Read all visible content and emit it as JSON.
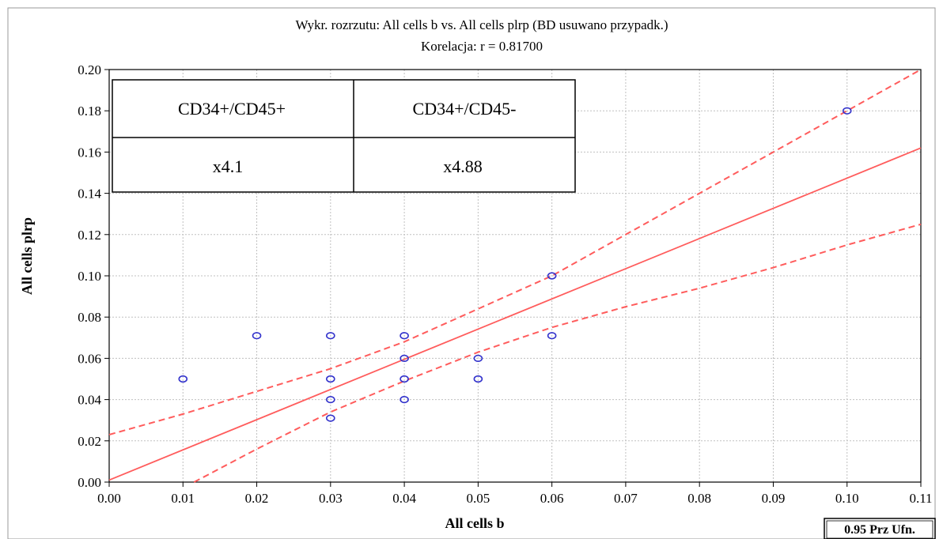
{
  "chart_data": {
    "type": "scatter",
    "title": "Wykr. rozrzutu: All cells b vs. All cells plrp (BD usuwano przypadk.)",
    "subtitle": "Korelacja: r = 0.81700",
    "xlabel": "All cells b",
    "ylabel": "All cells plrp",
    "xlim": [
      0,
      0.11
    ],
    "ylim": [
      0,
      0.2
    ],
    "x_ticks": [
      "0.00",
      "0.01",
      "0.02",
      "0.03",
      "0.04",
      "0.05",
      "0.06",
      "0.07",
      "0.08",
      "0.09",
      "0.10",
      "0.11"
    ],
    "y_ticks": [
      "0.00",
      "0.02",
      "0.04",
      "0.06",
      "0.08",
      "0.10",
      "0.12",
      "0.14",
      "0.16",
      "0.18",
      "0.20"
    ],
    "grid": true,
    "points": [
      {
        "x": 0.01,
        "y": 0.05
      },
      {
        "x": 0.02,
        "y": 0.071
      },
      {
        "x": 0.03,
        "y": 0.071
      },
      {
        "x": 0.03,
        "y": 0.05
      },
      {
        "x": 0.03,
        "y": 0.04
      },
      {
        "x": 0.03,
        "y": 0.031
      },
      {
        "x": 0.04,
        "y": 0.071
      },
      {
        "x": 0.04,
        "y": 0.06
      },
      {
        "x": 0.04,
        "y": 0.05
      },
      {
        "x": 0.04,
        "y": 0.04
      },
      {
        "x": 0.05,
        "y": 0.06
      },
      {
        "x": 0.05,
        "y": 0.05
      },
      {
        "x": 0.06,
        "y": 0.1
      },
      {
        "x": 0.06,
        "y": 0.071
      },
      {
        "x": 0.1,
        "y": 0.18
      }
    ],
    "regression_line": {
      "x": [
        0,
        0.11
      ],
      "y": [
        0.001,
        0.162
      ]
    },
    "confidence_upper": {
      "x": [
        0,
        0.01,
        0.02,
        0.03,
        0.04,
        0.05,
        0.06,
        0.07,
        0.08,
        0.09,
        0.1,
        0.11
      ],
      "y": [
        0.023,
        0.033,
        0.044,
        0.055,
        0.068,
        0.084,
        0.1,
        0.12,
        0.14,
        0.16,
        0.18,
        0.2
      ]
    },
    "confidence_lower": {
      "x": [
        0.0115,
        0.02,
        0.03,
        0.04,
        0.05,
        0.06,
        0.07,
        0.08,
        0.09,
        0.1,
        0.11
      ],
      "y": [
        0,
        0.016,
        0.034,
        0.049,
        0.063,
        0.075,
        0.085,
        0.094,
        0.104,
        0.115,
        0.125
      ]
    },
    "colors": {
      "points": "#3333cc",
      "lines": "#ff5c5c",
      "grid": "#c0c0c0"
    },
    "legend": {
      "placement": "bottom-right",
      "label": "0.95 Prz Ufn."
    },
    "inset_table": {
      "headers": [
        "CD34+/CD45+",
        "CD34+/CD45-"
      ],
      "values": [
        "x4.1",
        "x4.88"
      ]
    }
  }
}
